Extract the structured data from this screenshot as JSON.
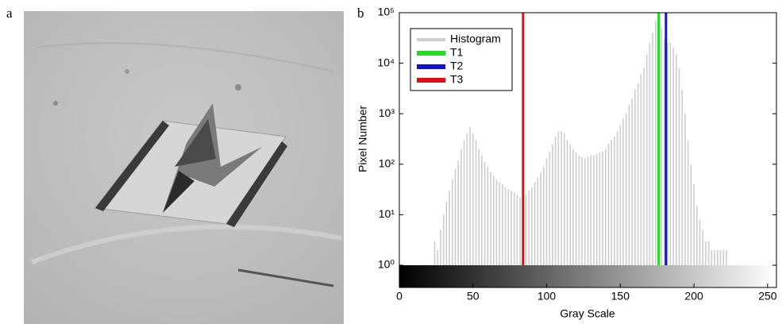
{
  "panels": {
    "a": "a",
    "b": "b"
  },
  "chart_data": {
    "type": "histogram-log",
    "xlabel": "Gray Scale",
    "ylabel": "Pixel Number",
    "x": [
      24,
      26,
      28,
      30,
      32,
      34,
      36,
      38,
      40,
      42,
      44,
      46,
      48,
      50,
      52,
      54,
      56,
      58,
      60,
      62,
      64,
      66,
      68,
      70,
      72,
      74,
      76,
      78,
      80,
      82,
      84,
      86,
      88,
      90,
      92,
      94,
      96,
      98,
      100,
      102,
      104,
      106,
      108,
      110,
      112,
      114,
      116,
      118,
      120,
      122,
      124,
      126,
      128,
      130,
      132,
      134,
      136,
      138,
      140,
      142,
      144,
      146,
      148,
      150,
      152,
      154,
      156,
      158,
      160,
      162,
      164,
      166,
      168,
      170,
      172,
      174,
      176,
      178,
      180,
      182,
      184,
      186,
      188,
      190,
      192,
      194,
      196,
      198,
      200,
      202,
      204,
      206,
      208,
      210,
      212,
      214,
      216,
      218,
      220,
      222
    ],
    "series": [
      {
        "name": "Histogram",
        "color": "#cfcfcf",
        "values": [
          3,
          2,
          5,
          10,
          18,
          30,
          50,
          80,
          120,
          200,
          300,
          400,
          550,
          400,
          300,
          200,
          150,
          110,
          90,
          70,
          60,
          50,
          45,
          40,
          35,
          32,
          30,
          28,
          25,
          22,
          20,
          25,
          30,
          35,
          45,
          55,
          70,
          90,
          130,
          180,
          250,
          350,
          450,
          450,
          400,
          300,
          250,
          200,
          170,
          150,
          140,
          130,
          140,
          150,
          150,
          160,
          170,
          180,
          200,
          250,
          300,
          350,
          450,
          600,
          800,
          1000,
          1500,
          2000,
          3000,
          4000,
          6000,
          8000,
          15000,
          25000,
          40000,
          70000,
          90000,
          50000,
          30000,
          25000,
          25000,
          20000,
          15000,
          8000,
          3000,
          1000,
          300,
          100,
          40,
          15,
          8,
          5,
          3,
          3,
          2,
          2,
          2,
          2,
          2,
          2
        ]
      }
    ],
    "thresholds": [
      {
        "name": "T1",
        "color": "#22dd22",
        "value": 176
      },
      {
        "name": "T2",
        "color": "#1010dd",
        "value": 181
      },
      {
        "name": "T3",
        "color": "#dd1010",
        "value": 84
      }
    ],
    "xlim": [
      0,
      256
    ],
    "xticks": [
      0,
      50,
      100,
      150,
      200,
      250
    ],
    "ylim": [
      1,
      100000
    ],
    "log_y": true,
    "yticks": [
      {
        "value": 1,
        "label": "10⁰"
      },
      {
        "value": 10,
        "label": "10¹"
      },
      {
        "value": 100,
        "label": "10²"
      },
      {
        "value": 1000,
        "label": "10³"
      },
      {
        "value": 10000,
        "label": "10⁴"
      },
      {
        "value": 100000,
        "label": "10⁵"
      }
    ],
    "legend": "upper-left"
  }
}
